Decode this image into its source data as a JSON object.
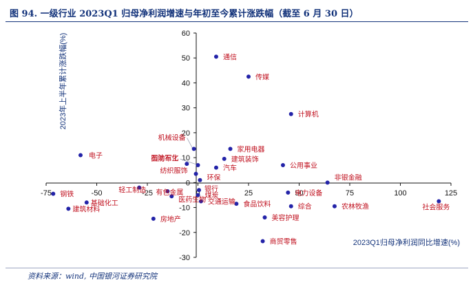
{
  "header": {
    "title": "图 94. 一级行业 2023Q1 归母净利润增速与年初至今累计涨跌幅（截至 6 月 30 日）"
  },
  "footer": {
    "source": "资料来源：wind, 中国银河证券研究院"
  },
  "colors": {
    "point": "#2323a8",
    "label": "#c0111f",
    "axis": "#111111",
    "title": "#12327a"
  },
  "chart_data": {
    "type": "scatter",
    "title": "图 94. 一级行业 2023Q1 归母净利润增速与年初至今累计涨跌幅（截至 6 月 30 日）",
    "xlabel": "2023Q1归母净利润同比增速(%)",
    "ylabel": "2023年上半年累计涨跌幅(%)",
    "xlim": [
      -75,
      125
    ],
    "ylim": [
      -30,
      60
    ],
    "xticks": [
      -75,
      -50,
      -25,
      0,
      25,
      50,
      75,
      100,
      125
    ],
    "yticks": [
      -30,
      -20,
      -10,
      0,
      10,
      20,
      30,
      40,
      50,
      60
    ],
    "grid": false,
    "legend": "none",
    "points": [
      {
        "name": "通信",
        "x": 9,
        "y": 50.5
      },
      {
        "name": "传媒",
        "x": 25,
        "y": 42.5
      },
      {
        "name": "计算机",
        "x": 46,
        "y": 27.5
      },
      {
        "name": "电子",
        "x": -58,
        "y": 11
      },
      {
        "name": "机械设备",
        "x": -2,
        "y": 13.5
      },
      {
        "name": "国防军工",
        "x": 0,
        "y": 7
      },
      {
        "name": "石油石化",
        "x": -5.5,
        "y": 7.5
      },
      {
        "name": "纺织服饰",
        "x": -1,
        "y": 3.5
      },
      {
        "name": "家用电器",
        "x": 16,
        "y": 13.5
      },
      {
        "name": "建筑装饰",
        "x": 13,
        "y": 9.5
      },
      {
        "name": "汽车",
        "x": 9,
        "y": 6
      },
      {
        "name": "公用事业",
        "x": 42,
        "y": 7
      },
      {
        "name": "环保",
        "x": 1,
        "y": 1
      },
      {
        "name": "非银金融",
        "x": 64,
        "y": 0
      },
      {
        "name": "钢铁",
        "x": -71.5,
        "y": -4.5
      },
      {
        "name": "建筑材料",
        "x": -64,
        "y": -10.5
      },
      {
        "name": "基础化工",
        "x": -55,
        "y": -8
      },
      {
        "name": "轻工制造",
        "x": -29,
        "y": -2
      },
      {
        "name": "有色金属",
        "x": -15,
        "y": -3.5
      },
      {
        "name": "医药生物",
        "x": -13,
        "y": -5.5
      },
      {
        "name": "银行",
        "x": 0.5,
        "y": -3
      },
      {
        "name": "煤炭",
        "x": 0,
        "y": -5
      },
      {
        "name": "交通运输",
        "x": 1.5,
        "y": -7.5
      },
      {
        "name": "食品饮料",
        "x": 19,
        "y": -8.5
      },
      {
        "name": "房地产",
        "x": -22,
        "y": -14.5
      },
      {
        "name": "美容护理",
        "x": 33,
        "y": -14
      },
      {
        "name": "电力设备",
        "x": 44.5,
        "y": -4
      },
      {
        "name": "综合",
        "x": 46,
        "y": -9.5
      },
      {
        "name": "农林牧渔",
        "x": 67.5,
        "y": -9.5
      },
      {
        "name": "社会服务",
        "x": 119,
        "y": -7.5
      },
      {
        "name": "商贸零售",
        "x": 32,
        "y": -23.5
      }
    ]
  }
}
